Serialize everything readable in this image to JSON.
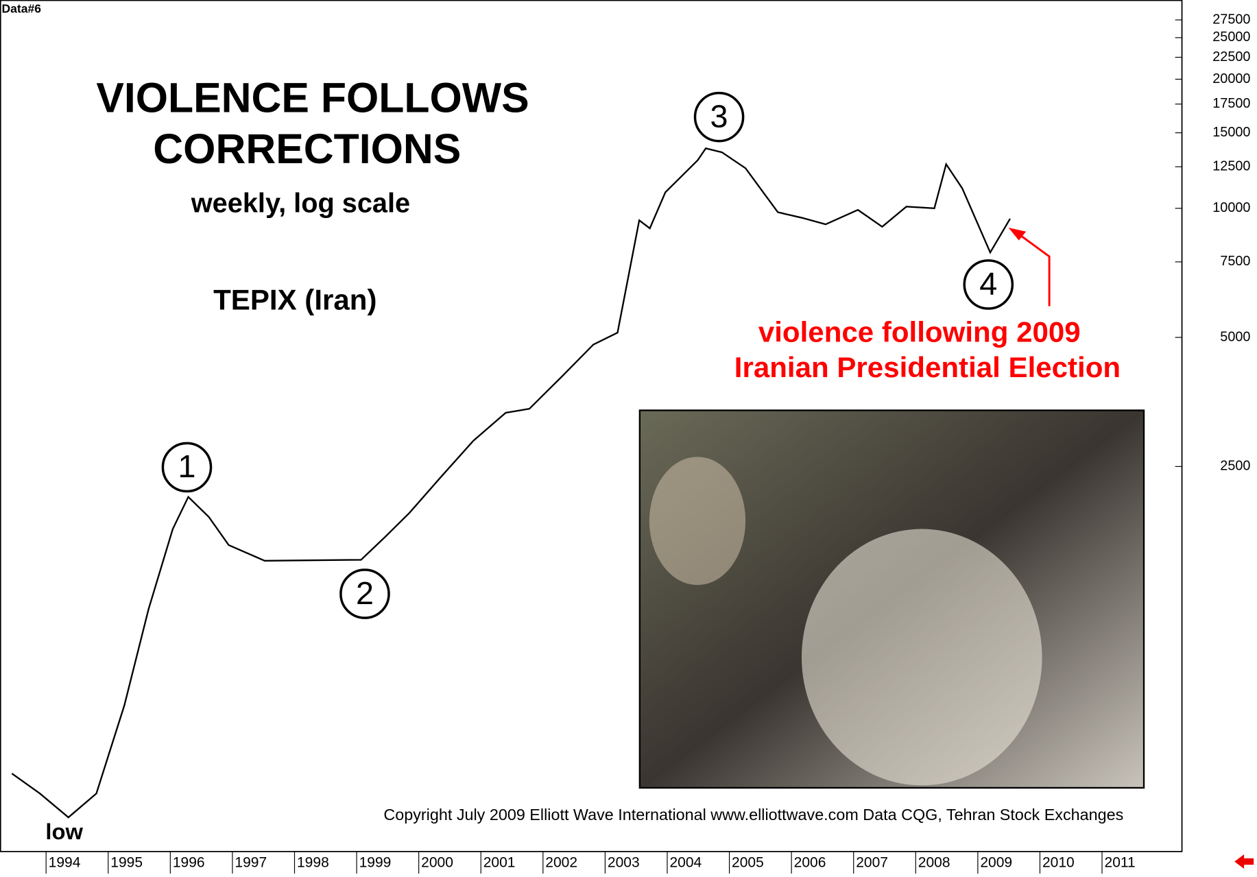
{
  "chart_data": {
    "type": "line",
    "panel_label": "Data#6",
    "title": [
      "VIOLENCE FOLLOWS",
      "CORRECTIONS"
    ],
    "subtitle": "weekly, log scale",
    "log_scale": true,
    "x": [
      1993.45,
      1993.9,
      1994.36,
      1994.81,
      1995.26,
      1995.65,
      1996.04,
      1996.29,
      1996.62,
      1996.94,
      1997.52,
      1999.07,
      1999.46,
      1999.85,
      2000.36,
      2000.88,
      2001.4,
      2001.78,
      2002.3,
      2002.81,
      2003.2,
      2003.55,
      2003.72,
      2003.97,
      2004.49,
      2004.62,
      2004.88,
      2005.26,
      2005.78,
      2006.17,
      2006.55,
      2007.07,
      2007.46,
      2007.85,
      2008.3,
      2008.49,
      2008.75,
      2009.2,
      2009.52
    ],
    "series": [
      {
        "name": "TEPIX (Iran)",
        "color": "#000000",
        "values": [
          481,
          432,
          380,
          432,
          693,
          1162,
          1787,
          2124,
          1907,
          1640,
          1507,
          1515,
          1714,
          1949,
          2366,
          2871,
          3336,
          3407,
          4048,
          4810,
          5129,
          9375,
          8980,
          10900,
          12940,
          13800,
          13510,
          12400,
          9790,
          9500,
          9175,
          9914,
          9057,
          10090,
          10000,
          12670,
          11130,
          7890,
          9456
        ]
      }
    ],
    "xlim": [
      1993.26,
      2012.28
    ],
    "xticks": [
      1994,
      1995,
      1996,
      1997,
      1998,
      1999,
      2000,
      2001,
      2002,
      2003,
      2004,
      2005,
      2006,
      2007,
      2008,
      2009,
      2010,
      2011
    ],
    "ylim": [
      317,
      30600
    ],
    "yticks": [
      2500,
      5000,
      7500,
      10000,
      12500,
      15000,
      17500,
      20000,
      22500,
      25000,
      27500
    ],
    "wave_labels": [
      "1",
      "2",
      "3",
      "4"
    ],
    "low_label": "low",
    "callout": [
      "violence following 2009",
      "Iranian Presidential Election"
    ],
    "copyright": "Copyright July 2009 Elliott Wave International www.elliottwave.com Data CQG, Tehran Stock Exchanges"
  }
}
